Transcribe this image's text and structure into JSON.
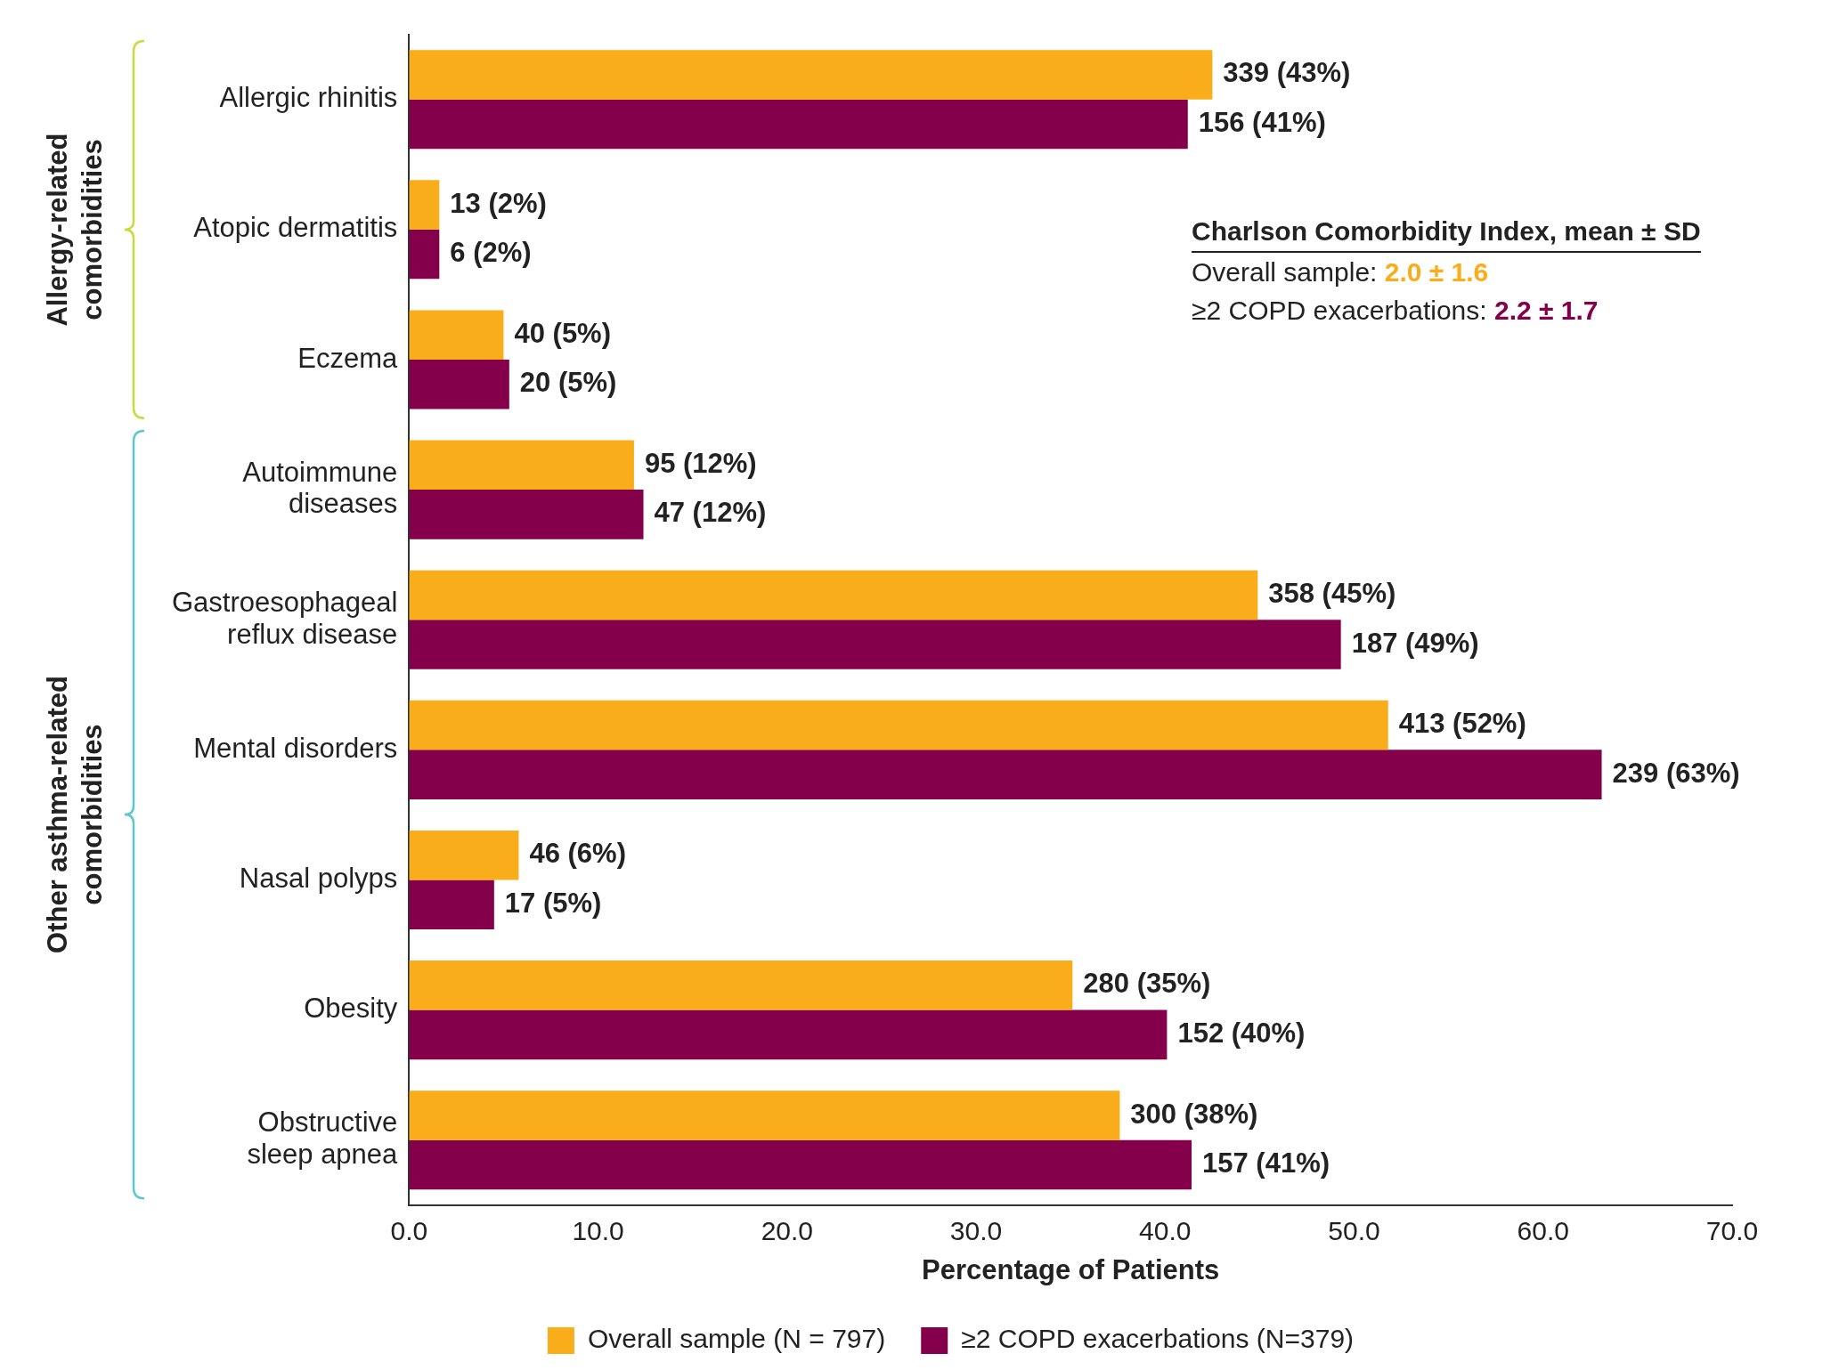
{
  "chart_data": {
    "type": "bar",
    "orientation": "horizontal",
    "xlabel": "Percentage of Patients",
    "categories": [
      "Allergic rhinitis",
      "Atopic dermatitis",
      "Eczema",
      "Autoimmune diseases",
      "Gastroesophageal reflux disease",
      "Mental disorders",
      "Nasal polyps",
      "Obesity",
      "Obstructive sleep apnea"
    ],
    "series": [
      {
        "name": "Overall sample (N = 797)",
        "color": "#f9ad1b",
        "values": [
          42.5,
          1.6,
          5.0,
          11.9,
          44.9,
          51.8,
          5.8,
          35.1,
          37.6
        ],
        "value_labels": [
          "339 (43%)",
          "13 (2%)",
          "40 (5%)",
          "95 (12%)",
          "358 (45%)",
          "413 (52%)",
          "46 (6%)",
          "280 (35%)",
          "300 (38%)"
        ]
      },
      {
        "name": "≥2 COPD exacerbations (N=379)",
        "color": "#85004b",
        "values": [
          41.2,
          1.6,
          5.3,
          12.4,
          49.3,
          63.1,
          4.5,
          40.1,
          41.4
        ],
        "value_labels": [
          "156 (41%)",
          "6 (2%)",
          "20 (5%)",
          "47 (12%)",
          "187 (49%)",
          "239 (63%)",
          "17 (5%)",
          "152 (40%)",
          "157 (41%)"
        ]
      }
    ],
    "xlim": [
      0,
      70
    ],
    "xticks": [
      {
        "value": 0,
        "label": "0.0"
      },
      {
        "value": 10,
        "label": "10.0"
      },
      {
        "value": 20,
        "label": "20.0"
      },
      {
        "value": 30,
        "label": "30.0"
      },
      {
        "value": 40,
        "label": "40.0"
      },
      {
        "value": 50,
        "label": "50.0"
      },
      {
        "value": 60,
        "label": "60.0"
      },
      {
        "value": 70,
        "label": "70.0"
      }
    ],
    "grid": false,
    "legend": "bottom",
    "annotations": [
      "Allergy-related comorbidities",
      "Other asthma-related comorbidities",
      "Charlson Comorbidity Index, mean ± SD",
      "Overall sample: 2.0 ± 1.6",
      "≥2 COPD exacerbations: 2.2 ± 1.7"
    ]
  }
}
